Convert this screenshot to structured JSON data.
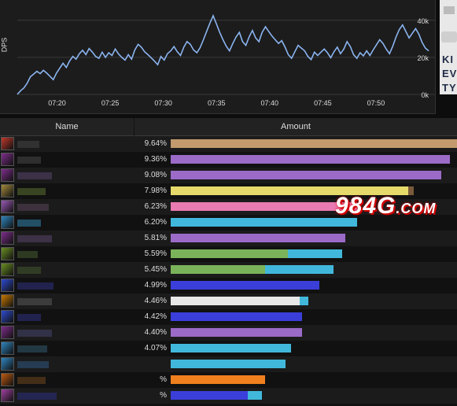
{
  "chart": {
    "ylabel": "DPS",
    "yticks": [
      "40k",
      "20k",
      "0k"
    ],
    "xticks": [
      "07:20",
      "07:25",
      "07:30",
      "07:35",
      "07:40",
      "07:45",
      "07:50"
    ]
  },
  "chart_data": {
    "type": "line",
    "title": "",
    "xlabel": "",
    "ylabel": "DPS",
    "ylim": [
      0,
      45000
    ],
    "x_range": [
      "07:17",
      "07:54"
    ],
    "series": [
      {
        "color": "#8ab4f0",
        "values": [
          0,
          2000,
          3500,
          6000,
          9500,
          11000,
          12500,
          11200,
          13000,
          11500,
          9800,
          8000,
          11500,
          14200,
          16800,
          14500,
          18000,
          20500,
          19000,
          22000,
          23800,
          21500,
          24800,
          22800,
          20500,
          19500,
          22800,
          20000,
          22500,
          21000,
          24500,
          21800,
          20000,
          18500,
          21500,
          19000,
          24000,
          27000,
          25500,
          23000,
          21500,
          19800,
          18000,
          16000,
          20500,
          18500,
          22000,
          23500,
          25800,
          23000,
          21000,
          25500,
          28500,
          27000,
          24000,
          22500,
          25200,
          29500,
          34000,
          38500,
          42500,
          38000,
          33500,
          29500,
          26000,
          23500,
          27500,
          31000,
          33500,
          28500,
          26500,
          31000,
          34500,
          30500,
          28500,
          33500,
          36500,
          34000,
          31500,
          29500,
          27500,
          29000,
          25500,
          21500,
          19500,
          23000,
          26500,
          25000,
          23500,
          20500,
          18800,
          22800,
          21000,
          22800,
          24500,
          22500,
          19800,
          23000,
          25500,
          22000,
          24500,
          28500,
          25800,
          21500,
          19500,
          22500,
          20800,
          23500,
          21000,
          24000,
          26800,
          29500,
          27500,
          24500,
          22000,
          26000,
          31000,
          35000,
          37500,
          34000,
          30500,
          33000,
          35500,
          32500,
          28000,
          25000,
          23500
        ],
        "x_end_index_time": "07:53"
      }
    ]
  },
  "table": {
    "headers": {
      "name": "Name",
      "amount": "Amount"
    },
    "rows": [
      {
        "pct": "9.64%",
        "bar_fraction": 1.0,
        "color": "#c29a6e",
        "color2": null,
        "fraction2": 0,
        "icon": "warrior-icon",
        "icon_color": "#c0392b"
      },
      {
        "pct": "9.36%",
        "bar_fraction": 0.975,
        "color": "#9b6bc7",
        "color2": null,
        "fraction2": 0,
        "icon": "warlock-icon",
        "icon_color": "#7e2d8c"
      },
      {
        "pct": "9.08%",
        "bar_fraction": 0.946,
        "color": "#9b6bc7",
        "color2": null,
        "fraction2": 0,
        "icon": "warlock-icon",
        "icon_color": "#7e2d8c"
      },
      {
        "pct": "7.98%",
        "bar_fraction": 0.83,
        "color": "#e6db6a",
        "color2": "#7a5a3a",
        "fraction2": 0.02,
        "icon": "rogue-icon",
        "icon_color": "#a58b3c"
      },
      {
        "pct": "6.23%",
        "bar_fraction": 0.65,
        "color": "#e97ab2",
        "color2": null,
        "fraction2": 0,
        "icon": "paladin-icon",
        "icon_color": "#9b59b6"
      },
      {
        "pct": "6.20%",
        "bar_fraction": 0.65,
        "color": "#41b8db",
        "color2": null,
        "fraction2": 0,
        "icon": "mage-icon",
        "icon_color": "#2e86c1"
      },
      {
        "pct": "5.81%",
        "bar_fraction": 0.61,
        "color": "#9b6bc7",
        "color2": null,
        "fraction2": 0,
        "icon": "warlock-icon",
        "icon_color": "#7e2d8c"
      },
      {
        "pct": "5.59%",
        "bar_fraction": 0.41,
        "color": "#7bb35a",
        "color2": "#41b8db",
        "fraction2": 0.19,
        "icon": "hunter-icon",
        "icon_color": "#6b8e23"
      },
      {
        "pct": "5.45%",
        "bar_fraction": 0.33,
        "color": "#7bb35a",
        "color2": "#41b8db",
        "fraction2": 0.24,
        "icon": "hunter-icon",
        "icon_color": "#6b8e23"
      },
      {
        "pct": "4.99%",
        "bar_fraction": 0.52,
        "color": "#3b3fd9",
        "color2": null,
        "fraction2": 0,
        "icon": "shaman-icon",
        "icon_color": "#2e4bd1"
      },
      {
        "pct": "4.46%",
        "bar_fraction": 0.45,
        "color": "#e8e8e8",
        "color2": "#41b8db",
        "fraction2": 0.03,
        "icon": "priest-icon",
        "icon_color": "#c87800"
      },
      {
        "pct": "4.42%",
        "bar_fraction": 0.46,
        "color": "#3b3fd9",
        "color2": null,
        "fraction2": 0,
        "icon": "shaman-icon",
        "icon_color": "#2e4bd1"
      },
      {
        "pct": "4.40%",
        "bar_fraction": 0.46,
        "color": "#9b6bc7",
        "color2": null,
        "fraction2": 0,
        "icon": "warlock-icon",
        "icon_color": "#7e2d8c"
      },
      {
        "pct": "4.07%",
        "bar_fraction": 0.42,
        "color": "#41b8db",
        "color2": null,
        "fraction2": 0,
        "icon": "mage-icon",
        "icon_color": "#2e86c1"
      },
      {
        "pct": "",
        "bar_fraction": 0.4,
        "color": "#41b8db",
        "color2": null,
        "fraction2": 0,
        "icon": "mage-icon",
        "icon_color": "#2e86c1"
      },
      {
        "pct": "%",
        "bar_fraction": 0.33,
        "color": "#f07f1e",
        "color2": null,
        "fraction2": 0,
        "icon": "druid-icon",
        "icon_color": "#c05a10"
      },
      {
        "pct": "%",
        "bar_fraction": 0.27,
        "color": "#3b3fd9",
        "color2": "#41b8db",
        "fraction2": 0.05,
        "icon": "shaman-icon",
        "icon_color": "#a040a0"
      }
    ]
  },
  "side_panel": {
    "lines": [
      "KI",
      "EV",
      "TY"
    ]
  },
  "watermark": {
    "text": "984G",
    "suffix": ".COM"
  }
}
